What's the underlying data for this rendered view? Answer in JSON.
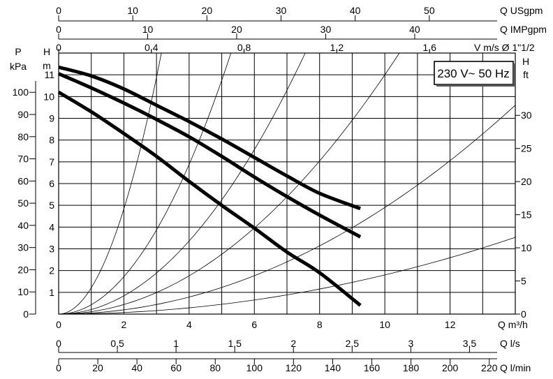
{
  "chart_data": {
    "type": "line",
    "x_axis": {
      "label": "Q m³/h",
      "range": [
        0,
        14
      ],
      "ticks": [
        0,
        2,
        4,
        6,
        8,
        10,
        12
      ]
    },
    "y_axis": {
      "label": "H m",
      "range": [
        0,
        12
      ],
      "ticks": [
        0,
        1,
        2,
        3,
        4,
        5,
        6,
        7,
        8,
        9,
        10,
        11
      ]
    },
    "top_axes": [
      {
        "label": "Q USgpm",
        "range": [
          0,
          61.6
        ],
        "ticks": [
          {
            "value": 0,
            "label": "0"
          },
          {
            "value": 10,
            "label": "10"
          },
          {
            "value": 20,
            "label": "20"
          },
          {
            "value": 30,
            "label": "30"
          },
          {
            "value": 40,
            "label": "40"
          },
          {
            "value": 50,
            "label": "50"
          }
        ]
      },
      {
        "label": "Q IMPgpm",
        "range": [
          0,
          51.3
        ],
        "ticks": [
          {
            "value": 0,
            "label": "0"
          },
          {
            "value": 10,
            "label": "10"
          },
          {
            "value": 20,
            "label": "20"
          },
          {
            "value": 30,
            "label": "30"
          },
          {
            "value": 40,
            "label": "40"
          }
        ]
      },
      {
        "label": "V m/s Ø 1\"1/2",
        "range": [
          0,
          1.97
        ],
        "ticks": [
          {
            "value": 0,
            "label": "0"
          },
          {
            "value": 0.4,
            "label": "0,4"
          },
          {
            "value": 0.8,
            "label": "0,8"
          },
          {
            "value": 1.2,
            "label": "1,2"
          },
          {
            "value": 1.6,
            "label": "1,6"
          }
        ]
      }
    ],
    "bottom_axes": [
      {
        "label": "Q l/s",
        "range": [
          0,
          3.89
        ],
        "ticks": [
          {
            "value": 0,
            "label": "0"
          },
          {
            "value": 0.5,
            "label": "0,5"
          },
          {
            "value": 1,
            "label": "1"
          },
          {
            "value": 1.5,
            "label": "1,5"
          },
          {
            "value": 2,
            "label": "2"
          },
          {
            "value": 2.5,
            "label": "2,5"
          },
          {
            "value": 3,
            "label": "3"
          },
          {
            "value": 3.5,
            "label": "3,5"
          }
        ]
      },
      {
        "label": "Q l/min",
        "range": [
          0,
          233.3
        ],
        "ticks": [
          {
            "value": 0,
            "label": "0"
          },
          {
            "value": 20,
            "label": "20"
          },
          {
            "value": 40,
            "label": "40"
          },
          {
            "value": 60,
            "label": "60"
          },
          {
            "value": 80,
            "label": "80"
          },
          {
            "value": 100,
            "label": "100"
          },
          {
            "value": 120,
            "label": "120"
          },
          {
            "value": 140,
            "label": "140"
          },
          {
            "value": 160,
            "label": "160"
          },
          {
            "value": 180,
            "label": "180"
          },
          {
            "value": 200,
            "label": "200"
          },
          {
            "value": 220,
            "label": "220"
          }
        ]
      }
    ],
    "left_axis_pressure": {
      "label": "P kPa",
      "range": [
        0,
        117.7
      ],
      "ticks": [
        {
          "value": 0,
          "label": "0"
        },
        {
          "value": 10,
          "label": "10"
        },
        {
          "value": 20,
          "label": "20"
        },
        {
          "value": 30,
          "label": "30"
        },
        {
          "value": 40,
          "label": "40"
        },
        {
          "value": 50,
          "label": "50"
        },
        {
          "value": 60,
          "label": "60"
        },
        {
          "value": 70,
          "label": "70"
        },
        {
          "value": 80,
          "label": "80"
        },
        {
          "value": 90,
          "label": "90"
        },
        {
          "value": 100,
          "label": "100"
        }
      ]
    },
    "right_axis_feet": {
      "label": "H ft",
      "range": [
        0,
        39.4
      ],
      "ticks": [
        {
          "value": 0,
          "label": "0"
        },
        {
          "value": 5,
          "label": "5"
        },
        {
          "value": 10,
          "label": "10"
        },
        {
          "value": 15,
          "label": "15"
        },
        {
          "value": 20,
          "label": "20"
        },
        {
          "value": 25,
          "label": "25"
        },
        {
          "value": 30,
          "label": "30"
        }
      ]
    },
    "series": [
      {
        "x": [
          0,
          1,
          2,
          3,
          4,
          5,
          6,
          7,
          8,
          9.25
        ],
        "y": [
          11.35,
          10.95,
          10.35,
          9.6,
          8.85,
          8.05,
          7.2,
          6.35,
          5.55,
          4.85
        ]
      },
      {
        "x": [
          0,
          1,
          2,
          3,
          4,
          5,
          6,
          7,
          8,
          9.25
        ],
        "y": [
          11.05,
          10.4,
          9.7,
          8.95,
          8.15,
          7.25,
          6.3,
          5.4,
          4.55,
          3.55
        ]
      },
      {
        "x": [
          0,
          1,
          2,
          3,
          4,
          5,
          6,
          7,
          8,
          9.25
        ],
        "y": [
          10.2,
          9.3,
          8.3,
          7.25,
          6.1,
          5.0,
          3.95,
          2.85,
          1.9,
          0.4
        ]
      }
    ],
    "system_curves_k": [
      1.21,
      0.43,
      0.21,
      0.11,
      0.049,
      0.018
    ],
    "grid": true,
    "annotation": "230 V~ 50 Hz"
  }
}
